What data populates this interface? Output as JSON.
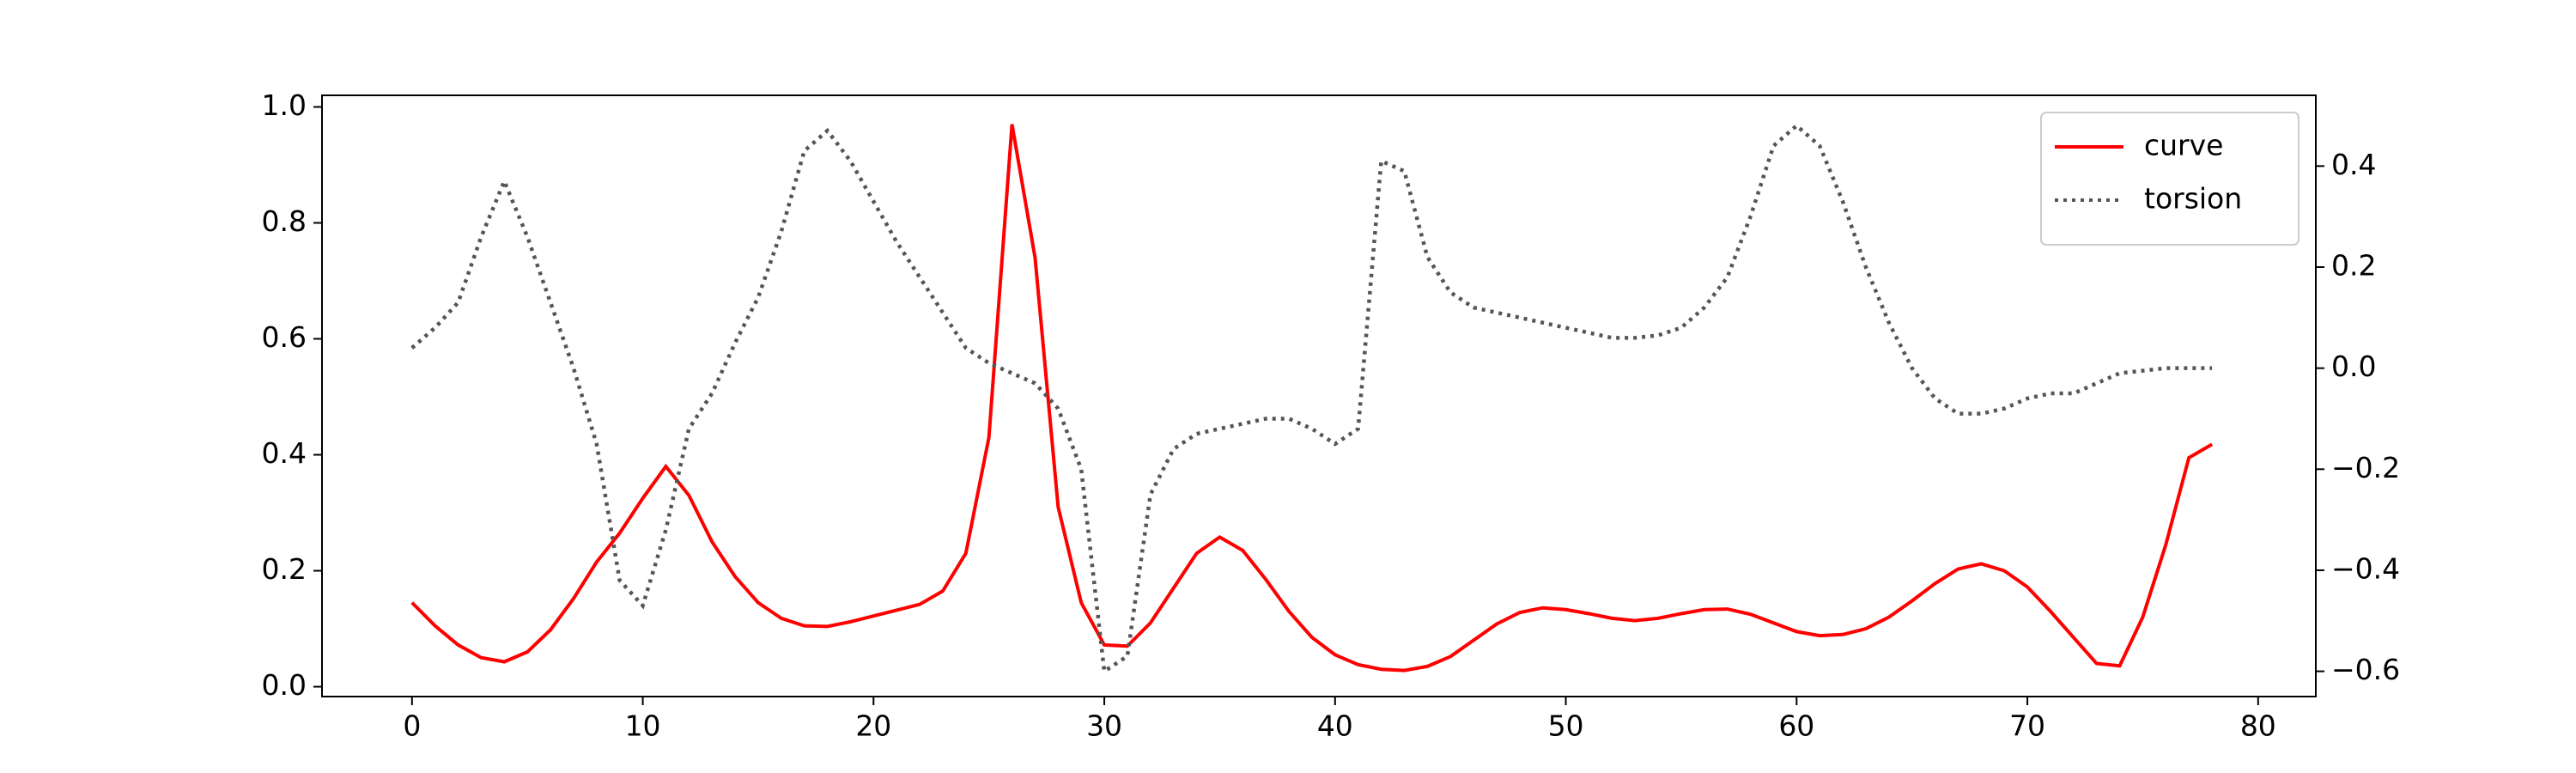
{
  "chart_data": {
    "type": "line",
    "x": [
      0,
      1,
      2,
      3,
      4,
      5,
      6,
      7,
      8,
      9,
      10,
      11,
      12,
      13,
      14,
      15,
      16,
      17,
      18,
      19,
      20,
      21,
      22,
      23,
      24,
      25,
      26,
      27,
      28,
      29,
      30,
      31,
      32,
      33,
      34,
      35,
      36,
      37,
      38,
      39,
      40,
      41,
      42,
      43,
      44,
      45,
      46,
      47,
      48,
      49,
      50,
      51,
      52,
      53,
      54,
      55,
      56,
      57,
      58,
      59,
      60,
      61,
      62,
      63,
      64,
      65,
      66,
      67,
      68,
      69,
      70,
      71,
      72,
      73,
      74,
      75,
      76,
      77,
      78
    ],
    "series": [
      {
        "name": "curve",
        "color": "#ff0000",
        "style": "solid",
        "values": [
          0.145,
          0.105,
          0.072,
          0.05,
          0.043,
          0.06,
          0.098,
          0.152,
          0.215,
          0.265,
          0.325,
          0.38,
          0.33,
          0.25,
          0.19,
          0.145,
          0.118,
          0.105,
          0.104,
          0.112,
          0.122,
          0.132,
          0.142,
          0.165,
          0.23,
          0.43,
          0.97,
          0.74,
          0.31,
          0.145,
          0.072,
          0.07,
          0.11,
          0.17,
          0.23,
          0.258,
          0.235,
          0.185,
          0.13,
          0.085,
          0.055,
          0.038,
          0.03,
          0.028,
          0.035,
          0.052,
          0.08,
          0.108,
          0.128,
          0.136,
          0.133,
          0.126,
          0.118,
          0.114,
          0.118,
          0.126,
          0.133,
          0.134,
          0.125,
          0.11,
          0.095,
          0.088,
          0.09,
          0.1,
          0.12,
          0.148,
          0.178,
          0.203,
          0.212,
          0.2,
          0.172,
          0.13,
          0.085,
          0.04,
          0.036,
          0.12,
          0.245,
          0.395,
          0.418
        ]
      },
      {
        "name": "torsion",
        "color": "#555555",
        "style": "dotted",
        "axis": "y2",
        "values": [
          0.04,
          0.08,
          0.13,
          0.26,
          0.37,
          0.26,
          0.13,
          0.0,
          -0.15,
          -0.42,
          -0.47,
          -0.32,
          -0.12,
          -0.05,
          0.05,
          0.14,
          0.27,
          0.43,
          0.47,
          0.41,
          0.33,
          0.25,
          0.18,
          0.11,
          0.04,
          0.01,
          -0.01,
          -0.03,
          -0.08,
          -0.2,
          -0.6,
          -0.57,
          -0.25,
          -0.16,
          -0.13,
          -0.12,
          -0.11,
          -0.1,
          -0.1,
          -0.12,
          -0.15,
          -0.12,
          0.41,
          0.39,
          0.22,
          0.15,
          0.12,
          0.11,
          0.1,
          0.09,
          0.08,
          0.07,
          0.06,
          0.06,
          0.065,
          0.08,
          0.12,
          0.18,
          0.3,
          0.44,
          0.48,
          0.44,
          0.33,
          0.2,
          0.09,
          0.0,
          -0.06,
          -0.09,
          -0.09,
          -0.08,
          -0.06,
          -0.05,
          -0.05,
          -0.03,
          -0.01,
          -0.005,
          0.0,
          0.0,
          0.0
        ]
      }
    ],
    "xlim": [
      -3.9,
      82.5
    ],
    "xticks": [
      0,
      10,
      20,
      30,
      40,
      50,
      60,
      70,
      80
    ],
    "ylim": [
      -0.017,
      1.02
    ],
    "yticks": [
      {
        "value": 0,
        "label": "0.0"
      },
      0.2,
      0.4,
      0.6,
      0.8,
      {
        "value": 1,
        "label": "1.0"
      }
    ],
    "y2lim": [
      -0.65,
      0.54
    ],
    "y2ticks": [
      {
        "value": -0.6,
        "label": "−0.6"
      },
      {
        "value": -0.4,
        "label": "−0.4"
      },
      {
        "value": -0.2,
        "label": "−0.2"
      },
      {
        "value": 0,
        "label": "0.0"
      },
      0.2,
      0.4
    ],
    "legend": "upper right",
    "grid": false
  }
}
